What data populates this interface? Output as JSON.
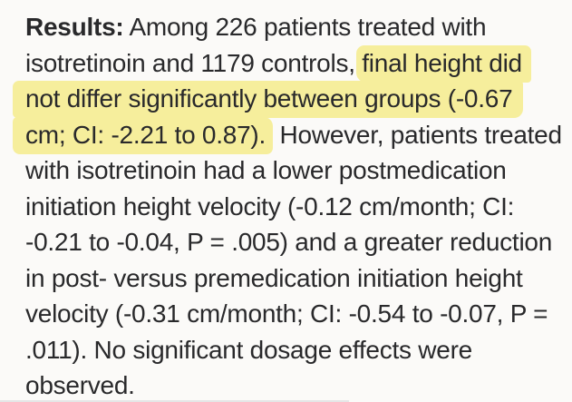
{
  "page": {
    "background_color": "#fbfaf8",
    "text_color": "#29292b",
    "highlight_color": "#f6ee9c"
  },
  "abstract": {
    "section_label": "Results:",
    "highlighted_text": "final height did not differ significantly between groups (-0.67 cm; CI: -2.21 to 0.87).",
    "lines": [
      {
        "segments": [
          {
            "text": "Results:"
          },
          {
            "text": " Among 226 patients treated with"
          }
        ]
      },
      {
        "segments": [
          {
            "text": "isotretinoin and 1179 controls, "
          },
          {
            "text": "final height did"
          }
        ]
      },
      {
        "segments": [
          {
            "text": "not differ significantly between groups (-0.67"
          }
        ]
      },
      {
        "segments": [
          {
            "text": "cm; CI: -2.21 to 0.87)."
          },
          {
            "text": " However, patients treated"
          }
        ]
      },
      {
        "segments": [
          {
            "text": "with isotretinoin had a lower postmedication"
          }
        ]
      },
      {
        "segments": [
          {
            "text": "initiation height velocity (-0.12 cm/month; CI:"
          }
        ]
      },
      {
        "segments": [
          {
            "text": "-0.21 to -0.04, P = .005) and a greater reduction"
          }
        ]
      },
      {
        "segments": [
          {
            "text": "in post- versus premedication initiation height"
          }
        ]
      },
      {
        "segments": [
          {
            "text": "velocity (-0.31 cm/month; CI: -0.54 to -0.07, P ="
          }
        ]
      },
      {
        "segments": [
          {
            "text": ".011). No significant dosage effects were"
          }
        ]
      },
      {
        "segments": [
          {
            "text": "observed."
          }
        ]
      }
    ]
  }
}
